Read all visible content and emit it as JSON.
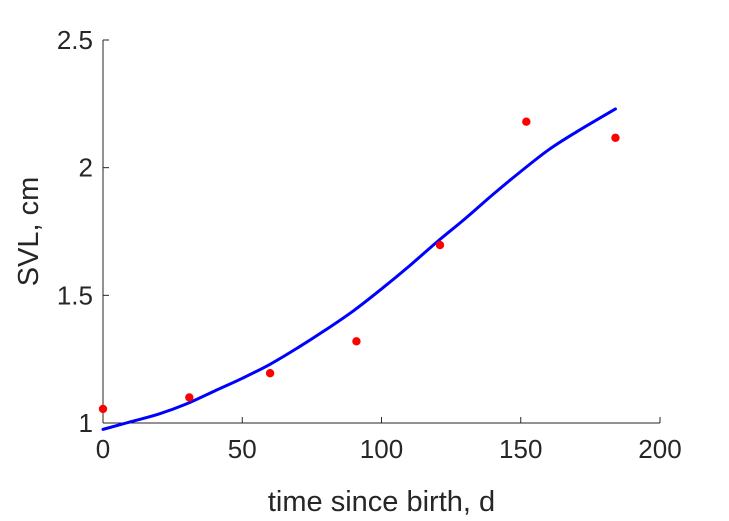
{
  "chart_data": {
    "type": "scatter",
    "title": "",
    "xlabel": "time since birth, d",
    "ylabel": "SVL, cm",
    "xlim": [
      0,
      200
    ],
    "ylim": [
      1,
      2.5
    ],
    "xticks": [
      0,
      50,
      100,
      150,
      200
    ],
    "xtick_labels": [
      "0",
      "50",
      "100",
      "150",
      "200"
    ],
    "yticks": [
      1,
      1.5,
      2,
      2.5
    ],
    "ytick_labels": [
      "1",
      "1.5",
      "2",
      "2.5"
    ],
    "grid": false,
    "legend": "none",
    "series": [
      {
        "kind": "points",
        "color": "#ff0000",
        "x": [
          0,
          31,
          60,
          91,
          121,
          152,
          184
        ],
        "y": [
          1.055,
          1.1,
          1.195,
          1.32,
          1.697,
          2.18,
          2.117
        ]
      },
      {
        "kind": "line",
        "color": "#0000ff",
        "x": [
          0,
          10,
          20,
          30,
          40,
          50,
          60,
          70,
          80,
          90,
          100,
          110,
          120,
          130,
          140,
          150,
          160,
          170,
          184
        ],
        "y": [
          0.975,
          1.005,
          1.035,
          1.075,
          1.125,
          1.175,
          1.23,
          1.295,
          1.365,
          1.44,
          1.525,
          1.615,
          1.71,
          1.8,
          1.895,
          1.985,
          2.07,
          2.14,
          2.23
        ]
      }
    ]
  }
}
